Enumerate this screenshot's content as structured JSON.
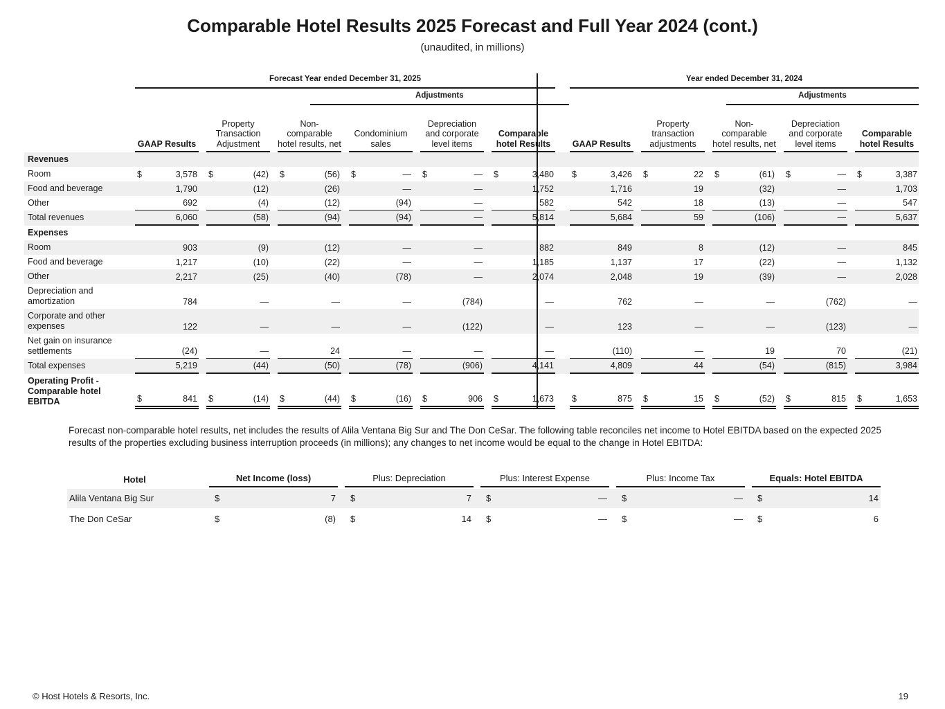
{
  "header": {
    "title": "Comparable Hotel Results 2025 Forecast and Full Year 2024 (cont.)",
    "subtitle": "(unaudited, in millions)"
  },
  "currency_symbol": "$",
  "main_table": {
    "left": {
      "group_header": "Forecast Year ended December 31, 2025",
      "adjustments_label": "Adjustments",
      "columns": [
        {
          "label": "GAAP Results",
          "bold": true
        },
        {
          "label": "Property Transaction Adjustment",
          "bold": false
        },
        {
          "label": "Non-comparable hotel results, net",
          "bold": false
        },
        {
          "label": "Condominium sales",
          "bold": false
        },
        {
          "label": "Depreciation and corporate level items",
          "bold": false
        },
        {
          "label": "Comparable hotel Results",
          "bold": true
        }
      ]
    },
    "right": {
      "group_header": "Year ended December 31, 2024",
      "adjustments_label": "Adjustments",
      "columns": [
        {
          "label": "GAAP Results",
          "bold": true
        },
        {
          "label": "Property transaction adjustments",
          "bold": false
        },
        {
          "label": "Non-comparable hotel results, net",
          "bold": false
        },
        {
          "label": "Depreciation and corporate level items",
          "bold": false
        },
        {
          "label": "Comparable hotel Results",
          "bold": true
        }
      ]
    },
    "rows": [
      {
        "label": "Revenues",
        "type": "section",
        "shaded": true
      },
      {
        "label": "Room",
        "type": "data",
        "shaded": false,
        "dollar": true,
        "left": [
          "3,578",
          "(42)",
          "(56)",
          "—",
          "—",
          "3,480"
        ],
        "right": [
          "3,426",
          "22",
          "(61)",
          "—",
          "3,387"
        ]
      },
      {
        "label": "Food and beverage",
        "type": "data",
        "shaded": true,
        "left": [
          "1,790",
          "(12)",
          "(26)",
          "—",
          "—",
          "1,752"
        ],
        "right": [
          "1,716",
          "19",
          "(32)",
          "—",
          "1,703"
        ]
      },
      {
        "label": "Other",
        "type": "data",
        "shaded": false,
        "rule_below": true,
        "left": [
          "692",
          "(4)",
          "(12)",
          "(94)",
          "—",
          "582"
        ],
        "right": [
          "542",
          "18",
          "(13)",
          "—",
          "547"
        ]
      },
      {
        "label": "Total revenues",
        "type": "total",
        "shaded": true,
        "left": [
          "6,060",
          "(58)",
          "(94)",
          "(94)",
          "—",
          "5,814"
        ],
        "right": [
          "5,684",
          "59",
          "(106)",
          "—",
          "5,637"
        ]
      },
      {
        "label": "Expenses",
        "type": "section",
        "shaded": false
      },
      {
        "label": "Room",
        "type": "data",
        "shaded": true,
        "left": [
          "903",
          "(9)",
          "(12)",
          "—",
          "—",
          "882"
        ],
        "right": [
          "849",
          "8",
          "(12)",
          "—",
          "845"
        ]
      },
      {
        "label": "Food and beverage",
        "type": "data",
        "shaded": false,
        "left": [
          "1,217",
          "(10)",
          "(22)",
          "—",
          "—",
          "1,185"
        ],
        "right": [
          "1,137",
          "17",
          "(22)",
          "—",
          "1,132"
        ]
      },
      {
        "label": "Other",
        "type": "data",
        "shaded": true,
        "left": [
          "2,217",
          "(25)",
          "(40)",
          "(78)",
          "—",
          "2,074"
        ],
        "right": [
          "2,048",
          "19",
          "(39)",
          "—",
          "2,028"
        ]
      },
      {
        "label": "Depreciation and amortization",
        "type": "data",
        "shaded": false,
        "left": [
          "784",
          "—",
          "—",
          "—",
          "(784)",
          "—"
        ],
        "right": [
          "762",
          "—",
          "—",
          "(762)",
          "—"
        ]
      },
      {
        "label": "Corporate and other expenses",
        "type": "data",
        "shaded": true,
        "left": [
          "122",
          "—",
          "—",
          "—",
          "(122)",
          "—"
        ],
        "right": [
          "123",
          "—",
          "—",
          "(123)",
          "—"
        ]
      },
      {
        "label": "Net gain on insurance settlements",
        "type": "data",
        "shaded": false,
        "rule_below": true,
        "left": [
          "(24)",
          "—",
          "24",
          "—",
          "—",
          "—"
        ],
        "right": [
          "(110)",
          "—",
          "19",
          "70",
          "(21)"
        ]
      },
      {
        "label": "Total expenses",
        "type": "total",
        "shaded": true,
        "left": [
          "5,219",
          "(44)",
          "(50)",
          "(78)",
          "(906)",
          "4,141"
        ],
        "right": [
          "4,809",
          "44",
          "(54)",
          "(815)",
          "3,984"
        ]
      },
      {
        "label": "Operating Profit - Comparable hotel EBITDA",
        "type": "ebitda",
        "shaded": false,
        "dollar": true,
        "left": [
          "841",
          "(14)",
          "(44)",
          "(16)",
          "906",
          "1,673"
        ],
        "right": [
          "875",
          "15",
          "(52)",
          "815",
          "1,653"
        ]
      }
    ]
  },
  "note": "Forecast non-comparable hotel results, net includes the results of Alila Ventana Big Sur and The Don CeSar. The following table reconciles net income to Hotel EBITDA based on the expected 2025 results of the properties excluding business interruption proceeds (in millions); any changes to net income would be equal to the change in Hotel EBITDA:",
  "reconciliation_table": {
    "columns": [
      {
        "label": "Hotel",
        "bold": true
      },
      {
        "label": "Net Income (loss)",
        "bold": true
      },
      {
        "label": "Plus: Depreciation",
        "bold": false
      },
      {
        "label": "Plus: Interest Expense",
        "bold": false
      },
      {
        "label": "Plus: Income Tax",
        "bold": false
      },
      {
        "label": "Equals: Hotel EBITDA",
        "bold": true
      }
    ],
    "rows": [
      {
        "hotel": "Alila Ventana Big Sur",
        "shaded": true,
        "values": [
          "7",
          "7",
          "—",
          "—",
          "14"
        ]
      },
      {
        "hotel": "The Don CeSar",
        "shaded": false,
        "values": [
          "(8)",
          "14",
          "—",
          "—",
          "6"
        ]
      }
    ]
  },
  "footer": {
    "copyright": "© Host Hotels & Resorts, Inc.",
    "page_number": "19"
  },
  "colors": {
    "row_shade": "#efefef",
    "rule": "#1a1a1a",
    "text": "#1a1a1a"
  }
}
